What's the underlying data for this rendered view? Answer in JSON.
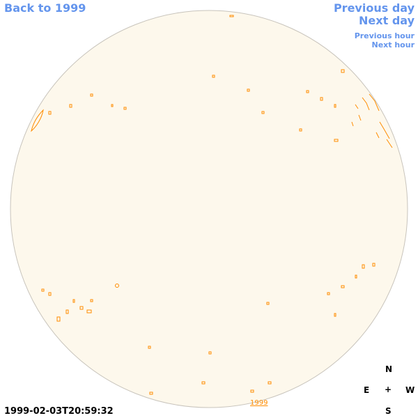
{
  "nav": {
    "back": "Back to 1999",
    "previous_day": "Previous day",
    "next_day": "Next day",
    "previous_hour": "Previous hour",
    "next_hour": "Next hour"
  },
  "footer": {
    "timestamp": "1999-02-03T20:59:32",
    "year_label": "1999"
  },
  "compass": {
    "north": "N",
    "east": "E",
    "center": "+",
    "west": "W",
    "south": "S"
  }
}
